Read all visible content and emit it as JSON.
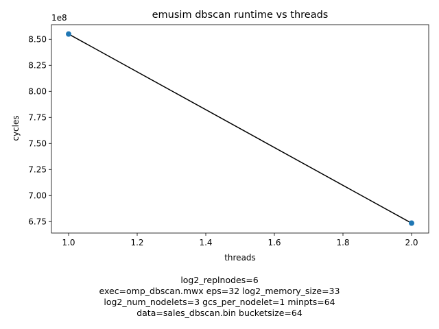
{
  "chart_data": {
    "type": "scatter",
    "title": "emusim dbscan runtime vs threads",
    "xlabel": "threads",
    "ylabel": "cycles",
    "y_offset_label": "1e8",
    "xlim": [
      0.95,
      2.05
    ],
    "ylim": [
      6.64,
      8.64
    ],
    "x_ticks": [
      1.0,
      1.2,
      1.4,
      1.6,
      1.8,
      2.0
    ],
    "x_tick_labels": [
      "1.0",
      "1.2",
      "1.4",
      "1.6",
      "1.8",
      "2.0"
    ],
    "y_ticks": [
      6.75,
      7.0,
      7.25,
      7.5,
      7.75,
      8.0,
      8.25,
      8.5
    ],
    "y_tick_labels": [
      "6.75",
      "7.00",
      "7.25",
      "7.50",
      "7.75",
      "8.00",
      "8.25",
      "8.50"
    ],
    "grid": false,
    "legend": "none",
    "series": [
      {
        "x": [
          1.0,
          2.0
        ],
        "y": [
          8.55,
          6.735
        ],
        "point_color": "#1f77b4",
        "line_color": "#000000"
      }
    ]
  },
  "caption": [
    "log2_replnodes=6",
    "exec=omp_dbscan.mwx   eps=32   log2_memory_size=33",
    "log2_num_nodelets=3   gcs_per_nodelet=1   minpts=64",
    "data=sales_dbscan.bin   bucketsize=64"
  ]
}
